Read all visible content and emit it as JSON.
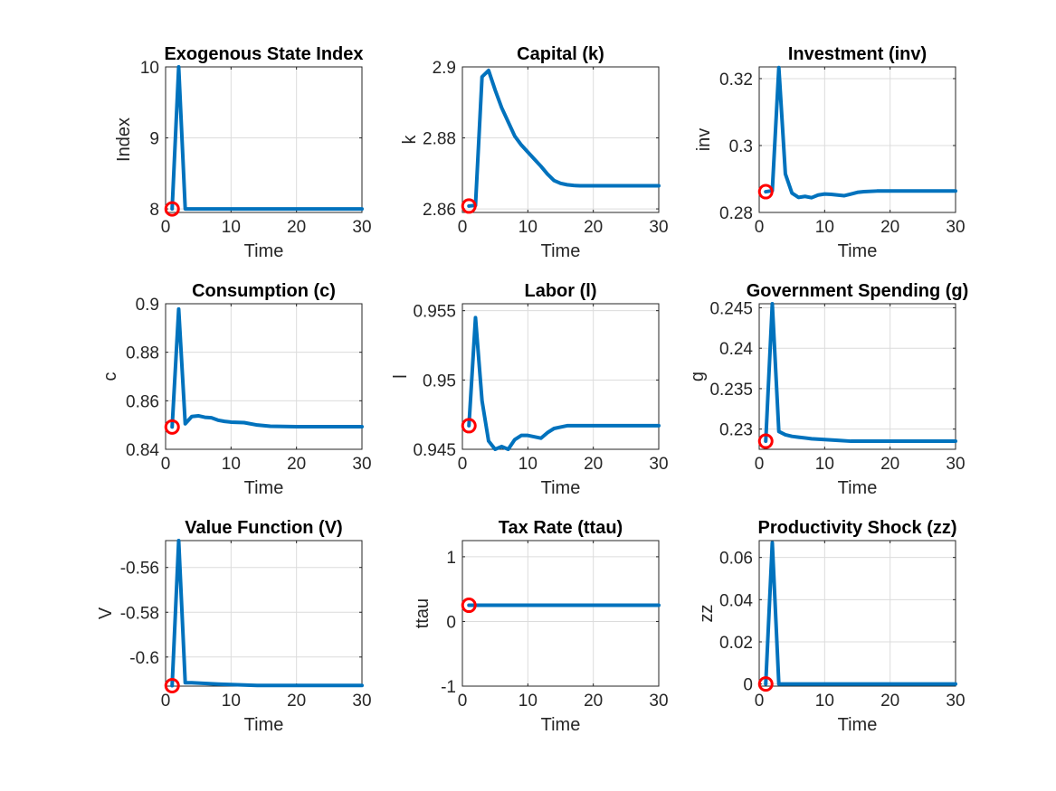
{
  "chart_data": [
    {
      "type": "line",
      "title": "Exogenous State Index",
      "xlabel": "Time",
      "ylabel": "Index",
      "xlim": [
        0,
        30
      ],
      "ylim": [
        7.95,
        10
      ],
      "xticks": [
        0,
        10,
        20,
        30
      ],
      "yticks": [
        8,
        9,
        10
      ],
      "ytick_labels": [
        "8",
        "9",
        "10"
      ],
      "grid": true,
      "series": [
        {
          "color": "#0072BD",
          "x": [
            1,
            2,
            3,
            4,
            30
          ],
          "y": [
            8,
            10,
            8,
            8,
            8
          ]
        }
      ],
      "marker": {
        "x": 1,
        "y": 8,
        "color": "#FF0000"
      }
    },
    {
      "type": "line",
      "title": "Capital (k)",
      "xlabel": "Time",
      "ylabel": "k",
      "xlim": [
        0,
        30
      ],
      "ylim": [
        2.859,
        2.9
      ],
      "xticks": [
        0,
        10,
        20,
        30
      ],
      "yticks": [
        2.86,
        2.88,
        2.9
      ],
      "ytick_labels": [
        "2.86",
        "2.88",
        "2.9"
      ],
      "grid": true,
      "series": [
        {
          "color": "#0072BD",
          "x": [
            1,
            2,
            3,
            4,
            5,
            6,
            7,
            8,
            9,
            10,
            11,
            12,
            13,
            14,
            15,
            16,
            17,
            18,
            20,
            25,
            30
          ],
          "y": [
            2.8608,
            2.861,
            2.8972,
            2.899,
            2.8935,
            2.8885,
            2.8845,
            2.8805,
            2.878,
            2.876,
            2.874,
            2.872,
            2.8698,
            2.868,
            2.8672,
            2.8668,
            2.8666,
            2.8665,
            2.8665,
            2.8665,
            2.8665
          ]
        }
      ],
      "marker": {
        "x": 1,
        "y": 2.8608,
        "color": "#FF0000"
      }
    },
    {
      "type": "line",
      "title": "Investment (inv)",
      "xlabel": "Time",
      "ylabel": "inv",
      "xlim": [
        0,
        30
      ],
      "ylim": [
        0.28,
        0.3235
      ],
      "xticks": [
        0,
        10,
        20,
        30
      ],
      "yticks": [
        0.28,
        0.3,
        0.32
      ],
      "ytick_labels": [
        "0.28",
        "0.3",
        "0.32"
      ],
      "grid": true,
      "series": [
        {
          "color": "#0072BD",
          "x": [
            1,
            2,
            3,
            4,
            5,
            6,
            7,
            8,
            9,
            10,
            11,
            12,
            13,
            14,
            15,
            16,
            18,
            20,
            30
          ],
          "y": [
            0.2862,
            0.2865,
            0.3233,
            0.2915,
            0.2858,
            0.2845,
            0.2848,
            0.2844,
            0.2852,
            0.2855,
            0.2854,
            0.2852,
            0.285,
            0.2855,
            0.286,
            0.2862,
            0.2864,
            0.2864,
            0.2864
          ]
        }
      ],
      "marker": {
        "x": 1,
        "y": 0.2862,
        "color": "#FF0000"
      }
    },
    {
      "type": "line",
      "title": "Consumption (c)",
      "xlabel": "Time",
      "ylabel": "c",
      "xlim": [
        0,
        30
      ],
      "ylim": [
        0.84,
        0.9
      ],
      "xticks": [
        0,
        10,
        20,
        30
      ],
      "yticks": [
        0.84,
        0.86,
        0.88,
        0.9
      ],
      "ytick_labels": [
        "0.84",
        "0.86",
        "0.88",
        "0.9"
      ],
      "grid": true,
      "series": [
        {
          "color": "#0072BD",
          "x": [
            1,
            2,
            3,
            4,
            5,
            6,
            7,
            8,
            9,
            10,
            12,
            14,
            16,
            18,
            20,
            30
          ],
          "y": [
            0.8492,
            0.8978,
            0.8505,
            0.8535,
            0.8538,
            0.8532,
            0.853,
            0.852,
            0.8515,
            0.8512,
            0.851,
            0.85,
            0.8495,
            0.8494,
            0.8493,
            0.8493
          ]
        }
      ],
      "marker": {
        "x": 1,
        "y": 0.8492,
        "color": "#FF0000"
      }
    },
    {
      "type": "line",
      "title": "Labor (l)",
      "xlabel": "Time",
      "ylabel": "l",
      "xlim": [
        0,
        30
      ],
      "ylim": [
        0.945,
        0.9555
      ],
      "xticks": [
        0,
        10,
        20,
        30
      ],
      "yticks": [
        0.945,
        0.95,
        0.955
      ],
      "ytick_labels": [
        "0.945",
        "0.95",
        "0.955"
      ],
      "grid": true,
      "series": [
        {
          "color": "#0072BD",
          "x": [
            1,
            2,
            3,
            4,
            5,
            6,
            7,
            8,
            9,
            10,
            11,
            12,
            13,
            14,
            15,
            16,
            18,
            20,
            30
          ],
          "y": [
            0.9467,
            0.9545,
            0.9485,
            0.9456,
            0.945,
            0.9452,
            0.945,
            0.9457,
            0.946,
            0.946,
            0.9459,
            0.9458,
            0.9462,
            0.9465,
            0.9466,
            0.9467,
            0.9467,
            0.9467,
            0.9467
          ]
        }
      ],
      "marker": {
        "x": 1,
        "y": 0.9467,
        "color": "#FF0000"
      }
    },
    {
      "type": "line",
      "title": "Government Spending (g)",
      "xlabel": "Time",
      "ylabel": "g",
      "xlim": [
        0,
        30
      ],
      "ylim": [
        0.2275,
        0.2455
      ],
      "xticks": [
        0,
        10,
        20,
        30
      ],
      "yticks": [
        0.23,
        0.235,
        0.24,
        0.245
      ],
      "ytick_labels": [
        "0.23",
        "0.235",
        "0.24",
        "0.245"
      ],
      "grid": true,
      "series": [
        {
          "color": "#0072BD",
          "x": [
            1,
            2,
            3,
            4,
            5,
            6,
            8,
            10,
            12,
            14,
            20,
            30
          ],
          "y": [
            0.2285,
            0.2455,
            0.2297,
            0.2293,
            0.2291,
            0.229,
            0.2288,
            0.2287,
            0.2286,
            0.2285,
            0.2285,
            0.2285
          ]
        }
      ],
      "marker": {
        "x": 1,
        "y": 0.2285,
        "color": "#FF0000"
      }
    },
    {
      "type": "line",
      "title": "Value Function (V)",
      "xlabel": "Time",
      "ylabel": "V",
      "xlim": [
        0,
        30
      ],
      "ylim": [
        -0.613,
        -0.548
      ],
      "xticks": [
        0,
        10,
        20,
        30
      ],
      "yticks": [
        -0.6,
        -0.58,
        -0.56
      ],
      "ytick_labels": [
        "-0.6",
        "-0.58",
        "-0.56"
      ],
      "grid": true,
      "series": [
        {
          "color": "#0072BD",
          "x": [
            1,
            2,
            3,
            4,
            6,
            8,
            10,
            12,
            14,
            20,
            30
          ],
          "y": [
            -0.6128,
            -0.548,
            -0.6115,
            -0.6115,
            -0.6118,
            -0.6121,
            -0.6123,
            -0.6125,
            -0.6127,
            -0.6127,
            -0.6127
          ]
        }
      ],
      "marker": {
        "x": 1,
        "y": -0.6128,
        "color": "#FF0000"
      }
    },
    {
      "type": "line",
      "title": "Tax Rate (ttau)",
      "xlabel": "Time",
      "ylabel": "ttau",
      "xlim": [
        0,
        30
      ],
      "ylim": [
        -1,
        1.25
      ],
      "xticks": [
        0,
        10,
        20,
        30
      ],
      "yticks": [
        -1,
        0,
        1
      ],
      "ytick_labels": [
        "-1",
        "0",
        "1"
      ],
      "grid": true,
      "series": [
        {
          "color": "#0072BD",
          "x": [
            1,
            30
          ],
          "y": [
            0.25,
            0.25
          ]
        }
      ],
      "marker": {
        "x": 1,
        "y": 0.25,
        "color": "#FF0000"
      }
    },
    {
      "type": "line",
      "title": "Productivity Shock (zz)",
      "xlabel": "Time",
      "ylabel": "zz",
      "xlim": [
        0,
        30
      ],
      "ylim": [
        -0.001,
        0.068
      ],
      "xticks": [
        0,
        10,
        20,
        30
      ],
      "yticks": [
        0,
        0.02,
        0.04,
        0.06
      ],
      "ytick_labels": [
        "0",
        "0.02",
        "0.04",
        "0.06"
      ],
      "grid": true,
      "series": [
        {
          "color": "#0072BD",
          "x": [
            1,
            2,
            3,
            4,
            30
          ],
          "y": [
            0,
            0.067,
            0,
            0,
            0
          ]
        }
      ],
      "marker": {
        "x": 1,
        "y": 0,
        "color": "#FF0000"
      }
    }
  ]
}
